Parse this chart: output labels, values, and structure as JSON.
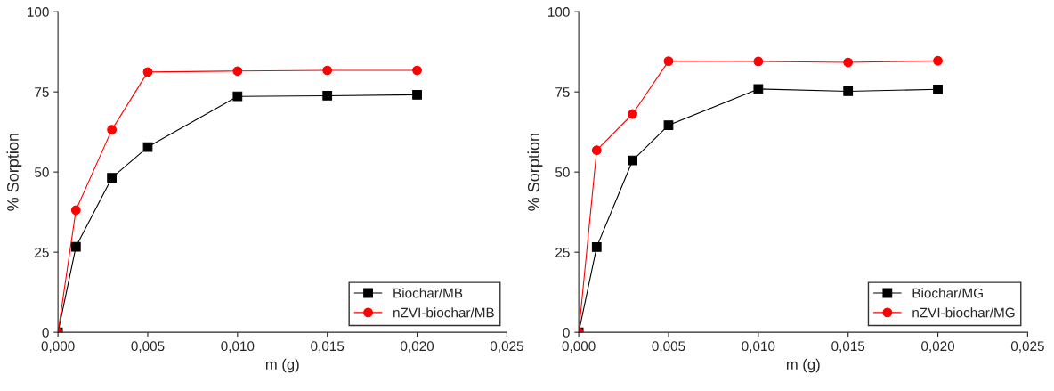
{
  "chart_data": [
    {
      "type": "line",
      "xlabel": "m (g)",
      "ylabel": "% Sorption",
      "xlim": [
        0,
        0.025
      ],
      "ylim": [
        0,
        100
      ],
      "xticks": [
        {
          "value": 0,
          "label": "0,000"
        },
        {
          "value": 0.005,
          "label": "0,005"
        },
        {
          "value": 0.01,
          "label": "0,010"
        },
        {
          "value": 0.015,
          "label": "0,015"
        },
        {
          "value": 0.02,
          "label": "0,020"
        },
        {
          "value": 0.025,
          "label": "0,025"
        }
      ],
      "yticks": [
        0,
        25,
        50,
        75,
        100
      ],
      "grid": false,
      "legend": "bottom right",
      "x": [
        0,
        0.001,
        0.003,
        0.005,
        0.01,
        0.015,
        0.02
      ],
      "series": [
        {
          "name": "Biochar/MB",
          "color": "#000000",
          "marker": "square",
          "values": [
            0,
            26.7,
            48.2,
            57.8,
            73.6,
            73.8,
            74.1
          ]
        },
        {
          "name": "nZVI-biochar/MB",
          "color": "#ff0000",
          "marker": "circle",
          "values": [
            0,
            38.1,
            63.2,
            81.2,
            81.5,
            81.7,
            81.7
          ]
        }
      ]
    },
    {
      "type": "line",
      "xlabel": "m (g)",
      "ylabel": "% Sorption",
      "xlim": [
        0,
        0.025
      ],
      "ylim": [
        0,
        100
      ],
      "xticks": [
        {
          "value": 0,
          "label": "0,000"
        },
        {
          "value": 0.005,
          "label": "0,005"
        },
        {
          "value": 0.01,
          "label": "0,010"
        },
        {
          "value": 0.015,
          "label": "0,015"
        },
        {
          "value": 0.02,
          "label": "0,020"
        },
        {
          "value": 0.025,
          "label": "0,025"
        }
      ],
      "yticks": [
        0,
        25,
        50,
        75,
        100
      ],
      "grid": false,
      "legend": "bottom right",
      "x": [
        0,
        0.001,
        0.003,
        0.005,
        0.01,
        0.015,
        0.02
      ],
      "series": [
        {
          "name": "Biochar/MG",
          "color": "#000000",
          "marker": "square",
          "values": [
            0,
            26.6,
            53.6,
            64.6,
            75.9,
            75.2,
            75.8
          ]
        },
        {
          "name": "nZVI-biochar/MG",
          "color": "#ff0000",
          "marker": "circle",
          "values": [
            0,
            56.8,
            68.1,
            84.6,
            84.5,
            84.2,
            84.7
          ]
        }
      ]
    }
  ]
}
